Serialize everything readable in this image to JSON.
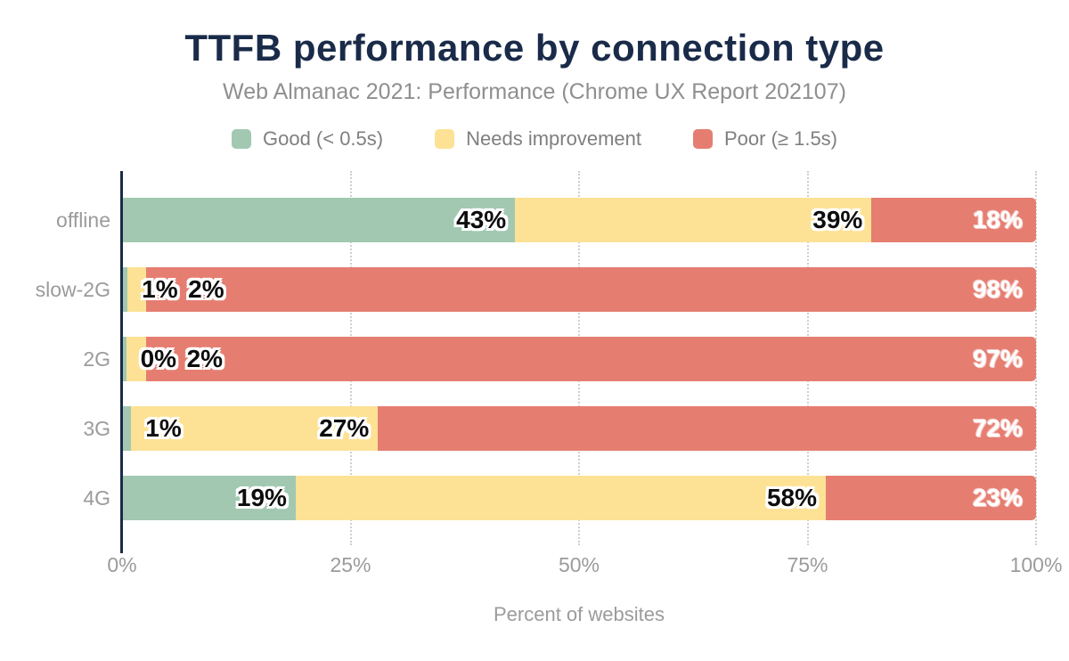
{
  "header": {
    "title": "TTFB performance by connection type",
    "subtitle": "Web Almanac 2021: Performance (Chrome UX Report 202107)"
  },
  "legend": {
    "items": [
      {
        "label": "Good (< 0.5s)",
        "color_key": "good"
      },
      {
        "label": "Needs improvement",
        "color_key": "needs_improvement"
      },
      {
        "label": "Poor (≥ 1.5s)",
        "color_key": "poor"
      }
    ]
  },
  "colors": {
    "good": "#a2c8b2",
    "needs_improvement": "#fde295",
    "poor": "#e57e71",
    "navy": "#1a2b49",
    "grid": "#cfcfcf",
    "tick_text": "#9b9b9b",
    "subtitle_text": "#8f8f8f",
    "legend_text": "#7f7f7f",
    "category_text": "#9b9b9b"
  },
  "x_axis": {
    "title": "Percent of websites",
    "ticks": [
      {
        "label": "0%",
        "pct": 0
      },
      {
        "label": "25%",
        "pct": 25
      },
      {
        "label": "50%",
        "pct": 50
      },
      {
        "label": "75%",
        "pct": 75
      },
      {
        "label": "100%",
        "pct": 100
      }
    ]
  },
  "rows": [
    {
      "category": "offline",
      "segments": [
        {
          "series": "good",
          "label": "43%",
          "width_pct": 43,
          "label_style": "dark"
        },
        {
          "series": "needs_improvement",
          "label": "39%",
          "width_pct": 39,
          "label_style": "dark"
        },
        {
          "series": "poor",
          "label": "18%",
          "width_pct": 18,
          "label_style": "light"
        }
      ]
    },
    {
      "category": "slow-2G",
      "segments": [
        {
          "series": "good",
          "label": "1%",
          "width_pct": 0.6,
          "label_style": "dark"
        },
        {
          "series": "needs_improvement",
          "label": "2%",
          "width_pct": 2.0,
          "label_style": "dark"
        },
        {
          "series": "poor",
          "label": "98%",
          "width_pct": 97.4,
          "label_style": "light"
        }
      ]
    },
    {
      "category": "2G",
      "segments": [
        {
          "series": "good",
          "label": "0%",
          "width_pct": 0.45,
          "label_style": "dark"
        },
        {
          "series": "needs_improvement",
          "label": "2%",
          "width_pct": 2.2,
          "label_style": "dark"
        },
        {
          "series": "poor",
          "label": "97%",
          "width_pct": 97.35,
          "label_style": "light"
        }
      ]
    },
    {
      "category": "3G",
      "segments": [
        {
          "series": "good",
          "label": "1%",
          "width_pct": 1,
          "label_style": "dark"
        },
        {
          "series": "needs_improvement",
          "label": "27%",
          "width_pct": 27,
          "label_style": "dark"
        },
        {
          "series": "poor",
          "label": "72%",
          "width_pct": 72,
          "label_style": "light"
        }
      ]
    },
    {
      "category": "4G",
      "segments": [
        {
          "series": "good",
          "label": "19%",
          "width_pct": 19,
          "label_style": "dark"
        },
        {
          "series": "needs_improvement",
          "label": "58%",
          "width_pct": 58,
          "label_style": "dark"
        },
        {
          "series": "poor",
          "label": "23%",
          "width_pct": 23,
          "label_style": "light"
        }
      ]
    }
  ],
  "chart_data": {
    "type": "bar",
    "stacked": true,
    "orientation": "horizontal",
    "title": "TTFB performance by connection type",
    "subtitle": "Web Almanac 2021: Performance (Chrome UX Report 202107)",
    "categories": [
      "offline",
      "slow-2G",
      "2G",
      "3G",
      "4G"
    ],
    "series": [
      {
        "name": "Good (< 0.5s)",
        "values": [
          43,
          1,
          0,
          1,
          19
        ]
      },
      {
        "name": "Needs improvement",
        "values": [
          39,
          2,
          2,
          27,
          58
        ]
      },
      {
        "name": "Poor (≥ 1.5s)",
        "values": [
          18,
          98,
          97,
          72,
          23
        ]
      }
    ],
    "xlabel": "Percent of websites",
    "xlim": [
      0,
      100
    ],
    "xticks": [
      "0%",
      "25%",
      "50%",
      "75%",
      "100%"
    ],
    "grid": "dotted vertical at 25/50/75/100",
    "legend_position": "top"
  }
}
